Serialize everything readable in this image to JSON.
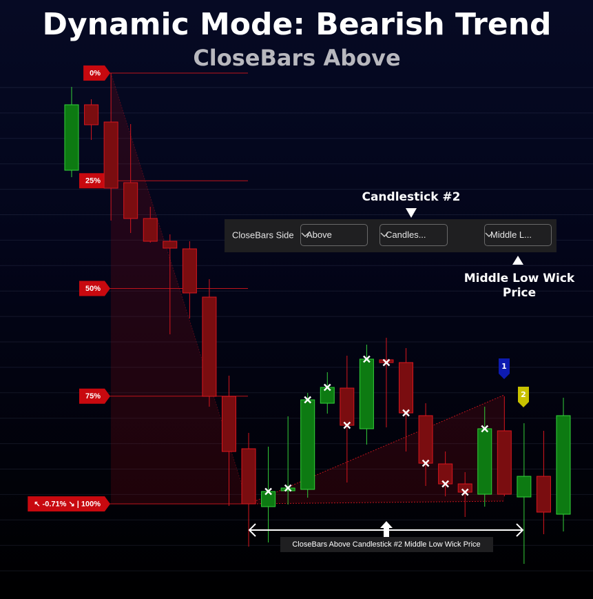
{
  "chart_data": {
    "type": "candlestick",
    "title": "Dynamic Mode: Bearish Trend",
    "subtitle": "CloseBars Above",
    "categories": [
      null,
      null,
      null,
      null,
      null,
      null,
      null,
      null,
      null,
      null,
      null,
      null,
      null,
      null,
      null,
      null,
      null,
      null,
      null,
      null,
      null,
      null,
      null,
      null,
      null,
      null
    ],
    "open": [
      77.44,
      92.64,
      88.64,
      74.56,
      66.24,
      60.96,
      59.2,
      48,
      24.96,
      12.8,
      -0.64,
      3.04,
      3.36,
      23.36,
      26.88,
      17.44,
      33.44,
      32.8,
      20.48,
      9.28,
      4.64,
      2.24,
      16.96,
      1.6,
      6.4,
      -2.4
    ],
    "high": [
      96.8,
      93.92,
      100,
      88.16,
      68.96,
      62.56,
      60.96,
      52.16,
      29.76,
      16.48,
      13.28,
      20.32,
      25.76,
      30.56,
      34.4,
      36.96,
      38.56,
      36.16,
      23.36,
      12.16,
      7.36,
      22.56,
      24.96,
      18.72,
      16.96,
      24.64
    ],
    "low": [
      75.84,
      84.48,
      65.76,
      62.88,
      60.64,
      39.36,
      43.04,
      22.56,
      -0.48,
      -9.92,
      -8.96,
      -0.16,
      1.44,
      20.96,
      4.96,
      13.76,
      17.76,
      12.16,
      4.16,
      1.76,
      -3.04,
      -0.64,
      1.76,
      -13.92,
      -7.04,
      -6.4
    ],
    "close": [
      92.64,
      88,
      73.28,
      66.24,
      60.96,
      59.36,
      48.96,
      24.96,
      12.16,
      0,
      2.88,
      3.68,
      24.16,
      27.04,
      18.24,
      33.6,
      32.8,
      21.12,
      9.44,
      4.64,
      2.72,
      17.44,
      2.24,
      6.4,
      -1.92,
      20.48
    ],
    "up_color": "#0d7a12",
    "down_color": "#7a0d10",
    "ylim": [
      -22,
      117
    ],
    "fib_levels": [
      {
        "value": 100,
        "label": "0%"
      },
      {
        "value": 75,
        "label": "25%"
      },
      {
        "value": 50,
        "label": "50%"
      },
      {
        "value": 25,
        "label": "75%"
      },
      {
        "value": 0,
        "label": "↖ -0.71% ↘ | 100%"
      }
    ],
    "toolbar": {
      "label": "CloseBars Side",
      "side": "Above",
      "candle": "Candles...",
      "price": "Middle L..."
    },
    "annotations": {
      "candle": "Candlestick #2",
      "price": "Middle Low Wick Price",
      "range": "CloseBars Above Candlestick #2 Middle Low Wick Price",
      "marker_1": "1",
      "marker_2": "2"
    }
  }
}
